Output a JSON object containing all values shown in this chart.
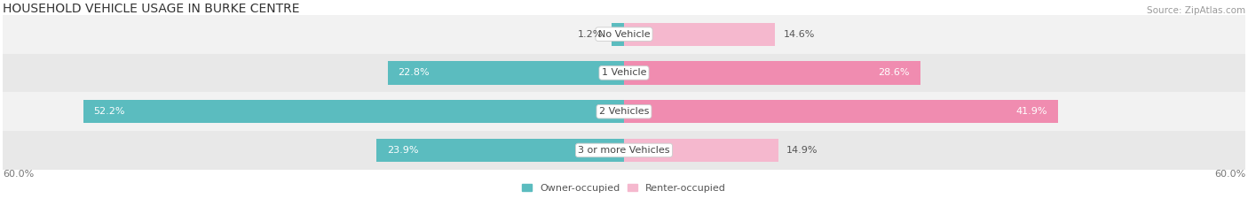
{
  "title": "HOUSEHOLD VEHICLE USAGE IN BURKE CENTRE",
  "source": "Source: ZipAtlas.com",
  "categories": [
    "No Vehicle",
    "1 Vehicle",
    "2 Vehicles",
    "3 or more Vehicles"
  ],
  "owner_values": [
    1.2,
    22.8,
    52.2,
    23.9
  ],
  "renter_values": [
    14.6,
    28.6,
    41.9,
    14.9
  ],
  "owner_color": "#5bbcbf",
  "renter_color": "#f08cb0",
  "renter_color_light": "#f5b8ce",
  "row_bg_odd": "#f2f2f2",
  "row_bg_even": "#e8e8e8",
  "x_max": 60.0,
  "xlabel": "60.0%",
  "legend_owner": "Owner-occupied",
  "legend_renter": "Renter-occupied",
  "title_fontsize": 10,
  "source_fontsize": 7.5,
  "label_fontsize": 8,
  "cat_label_fontsize": 8,
  "bar_height": 0.6
}
